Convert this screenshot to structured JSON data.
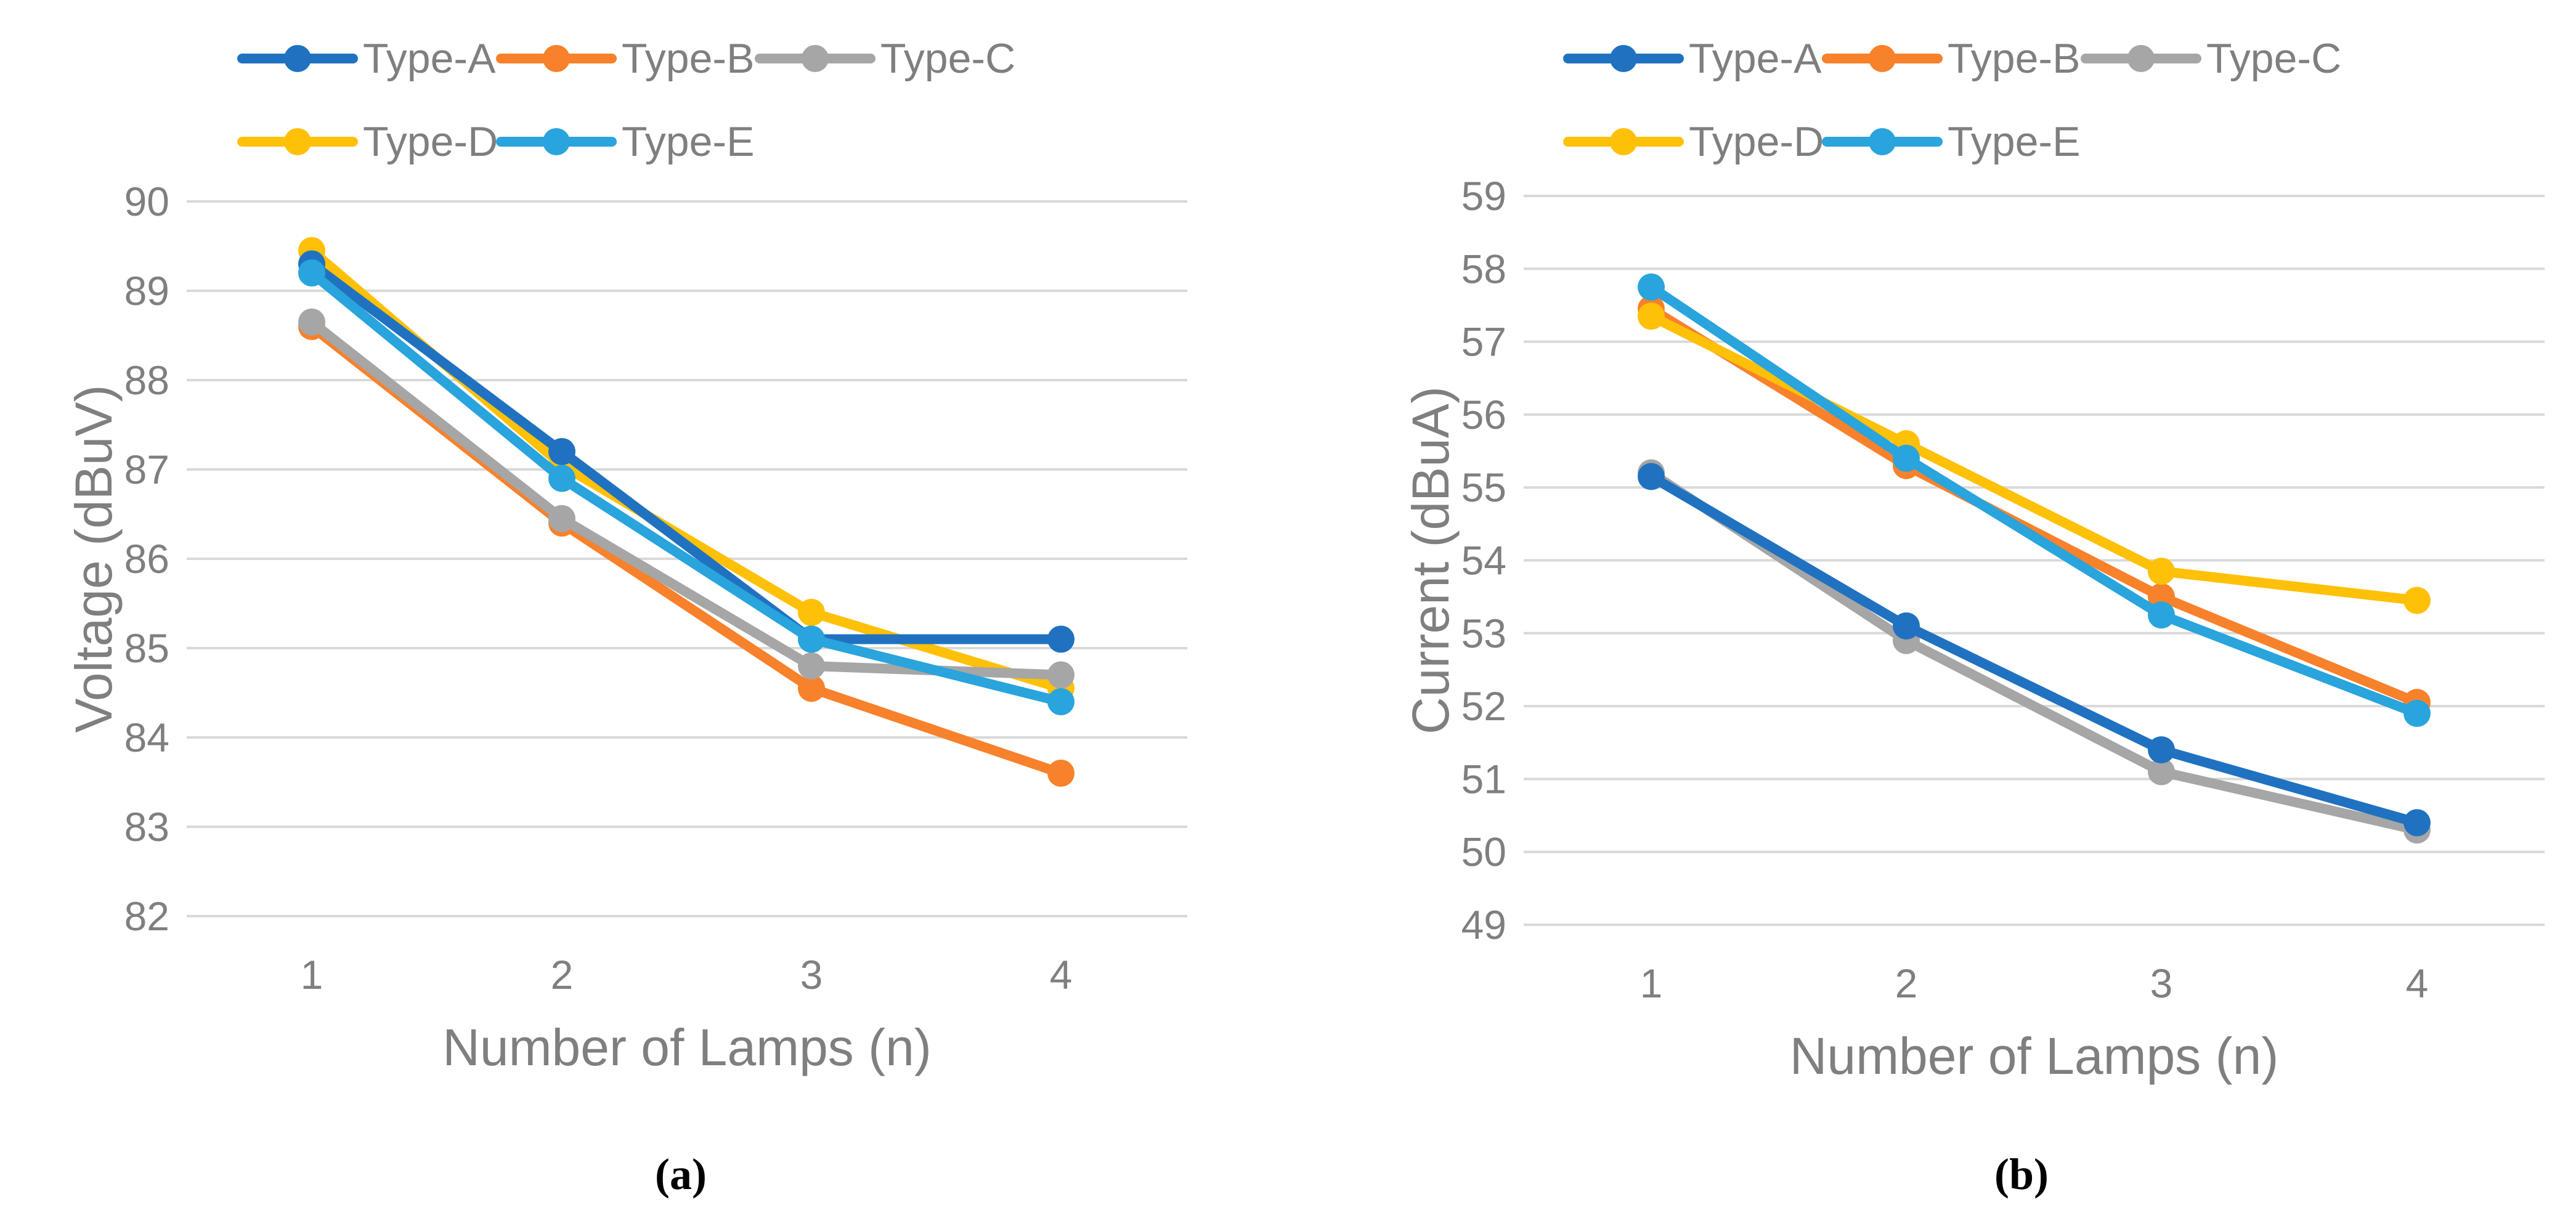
{
  "figure": {
    "background": "#ffffff",
    "grid_color": "#d9d9d9",
    "axis_text_color": "#7f7f7f",
    "caption_color": "#000000"
  },
  "chart_data": [
    {
      "type": "line",
      "panel_caption": "(a)",
      "xlabel": "Number of Lamps (n)",
      "ylabel": "Voltage (dBuV)",
      "x_tick_labels": [
        "1",
        "2",
        "3",
        "4"
      ],
      "x": [
        1,
        2,
        3,
        4
      ],
      "ylim": [
        82,
        90
      ],
      "ytick_step": 1,
      "y_tick_labels": [
        "90",
        "89",
        "88",
        "87",
        "86",
        "85",
        "84",
        "83",
        "82"
      ],
      "grid": true,
      "legend_position": "top-left",
      "legend_rows": [
        [
          "Type-A",
          "Type-B",
          "Type-C"
        ],
        [
          "Type-D",
          "Type-E"
        ]
      ],
      "series": [
        {
          "name": "Type-A",
          "color": "#2072C0",
          "values": [
            89.3,
            87.2,
            85.1,
            85.1
          ]
        },
        {
          "name": "Type-B",
          "color": "#F8812B",
          "values": [
            88.6,
            86.4,
            84.55,
            83.6
          ]
        },
        {
          "name": "Type-C",
          "color": "#A6A6A6",
          "values": [
            88.65,
            86.45,
            84.8,
            84.7
          ]
        },
        {
          "name": "Type-D",
          "color": "#FFC008",
          "values": [
            89.45,
            87.05,
            85.4,
            84.55
          ]
        },
        {
          "name": "Type-E",
          "color": "#29A4DC",
          "values": [
            89.2,
            86.9,
            85.1,
            84.4
          ]
        }
      ],
      "draw_order": [
        1,
        3,
        2,
        0,
        4
      ]
    },
    {
      "type": "line",
      "panel_caption": "(b)",
      "xlabel": "Number of Lamps (n)",
      "ylabel": "Current (dBuA)",
      "x_tick_labels": [
        "1",
        "2",
        "3",
        "4"
      ],
      "x": [
        1,
        2,
        3,
        4
      ],
      "ylim": [
        49,
        59
      ],
      "ytick_step": 1,
      "y_tick_labels": [
        "59",
        "58",
        "57",
        "56",
        "55",
        "54",
        "53",
        "52",
        "51",
        "50",
        "49"
      ],
      "grid": true,
      "legend_position": "top-left",
      "legend_rows": [
        [
          "Type-A",
          "Type-B",
          "Type-C"
        ],
        [
          "Type-D",
          "Type-E"
        ]
      ],
      "series": [
        {
          "name": "Type-A",
          "color": "#2072C0",
          "values": [
            55.15,
            53.1,
            51.4,
            50.4
          ]
        },
        {
          "name": "Type-B",
          "color": "#F8812B",
          "values": [
            57.45,
            55.3,
            53.5,
            52.05
          ]
        },
        {
          "name": "Type-C",
          "color": "#A6A6A6",
          "values": [
            55.2,
            52.9,
            51.1,
            50.3
          ]
        },
        {
          "name": "Type-D",
          "color": "#FFC008",
          "values": [
            57.35,
            55.6,
            53.85,
            53.45
          ]
        },
        {
          "name": "Type-E",
          "color": "#29A4DC",
          "values": [
            57.75,
            55.4,
            53.25,
            51.9
          ]
        }
      ],
      "draw_order": [
        1,
        3,
        2,
        0,
        4
      ]
    }
  ]
}
